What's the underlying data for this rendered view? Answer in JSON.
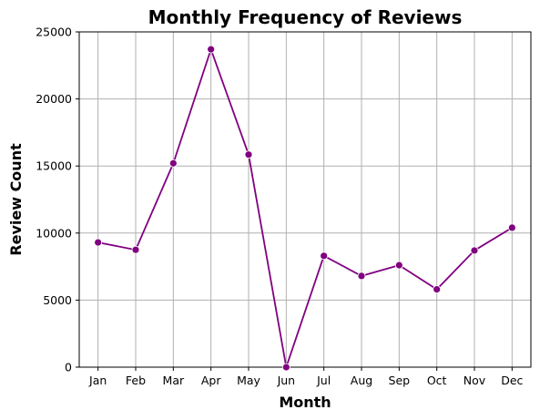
{
  "chart_data": {
    "type": "line",
    "title": "Monthly Frequency of Reviews",
    "xlabel": "Month",
    "ylabel": "Review Count",
    "categories": [
      "Jan",
      "Feb",
      "Mar",
      "Apr",
      "May",
      "Jun",
      "Jul",
      "Aug",
      "Sep",
      "Oct",
      "Nov",
      "Dec"
    ],
    "series": [
      {
        "values": [
          9300,
          8750,
          15200,
          23700,
          15850,
          0,
          8300,
          6800,
          7600,
          5800,
          8700,
          10400
        ],
        "color": "#800080"
      }
    ],
    "ylim": [
      0,
      25000
    ],
    "yticks": [
      0,
      5000,
      10000,
      15000,
      20000,
      25000
    ],
    "grid": true,
    "marker": "circle"
  }
}
